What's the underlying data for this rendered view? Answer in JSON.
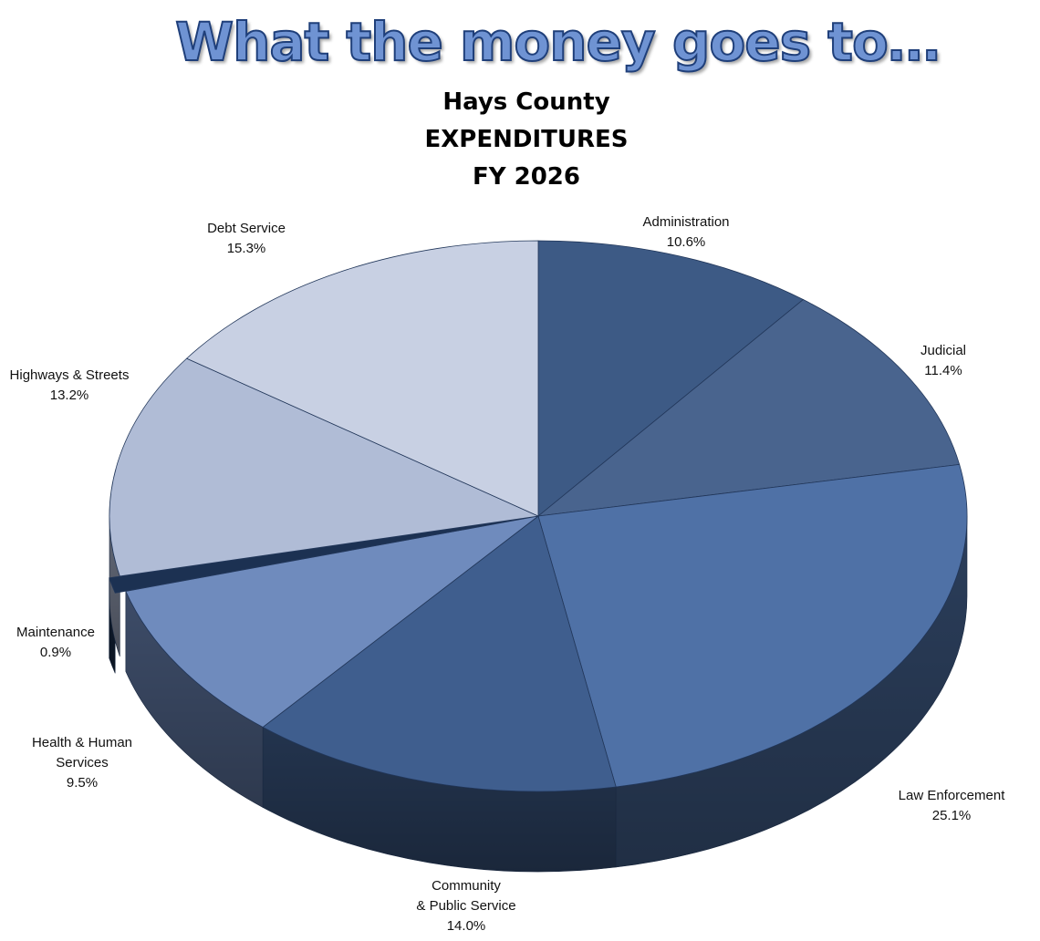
{
  "banner": "What the money goes to…",
  "chart_data": {
    "type": "pie",
    "title": [
      "Hays County",
      "EXPENDITURES",
      "FY 2026"
    ],
    "slices": [
      {
        "label": [
          "Administration"
        ],
        "pct": "10.6%",
        "value": 10.6,
        "color": "#3d5a85"
      },
      {
        "label": [
          "Judicial"
        ],
        "pct": "11.4%",
        "value": 11.4,
        "color": "#49648e"
      },
      {
        "label": [
          "Law Enforcement"
        ],
        "pct": "25.1%",
        "value": 25.1,
        "color": "#4f71a6"
      },
      {
        "label": [
          "Community",
          "& Public Service"
        ],
        "pct": "14.0%",
        "value": 14.0,
        "color": "#3f5e8e"
      },
      {
        "label": [
          "Health & Human",
          "Services"
        ],
        "pct": "9.5%",
        "value": 9.5,
        "color": "#6f8bbd"
      },
      {
        "label": [
          "Maintenance"
        ],
        "pct": "0.9%",
        "value": 0.9,
        "color": "#1c3152"
      },
      {
        "label": [
          "Highways & Streets"
        ],
        "pct": "13.2%",
        "value": 13.2,
        "color": "#b0bcd6"
      },
      {
        "label": [
          "Debt Service"
        ],
        "pct": "15.3%",
        "value": 15.3,
        "color": "#c8d0e3"
      }
    ]
  }
}
